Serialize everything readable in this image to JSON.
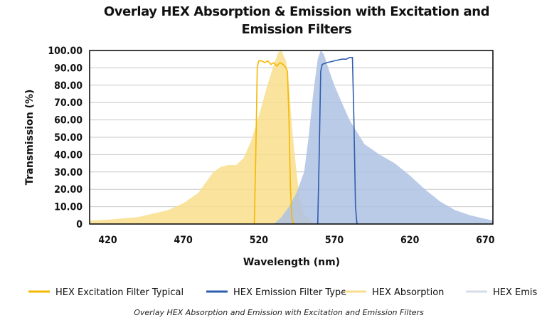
{
  "chart_data": {
    "type": "area",
    "title_lines": [
      "Overlay HEX Absorption & Emission with Excitation and",
      "Emission Filters"
    ],
    "xlabel": "Wavelength (nm)",
    "ylabel": "Transmission (%)",
    "xlim": [
      408,
      675
    ],
    "ylim": [
      0,
      100
    ],
    "xticks": [
      420,
      470,
      520,
      570,
      620,
      670
    ],
    "yticks": [
      0,
      10,
      20,
      30,
      40,
      50,
      60,
      70,
      80,
      90,
      100
    ],
    "ytick_labels": [
      "0",
      "10.00",
      "20.00",
      "30.00",
      "40.00",
      "50.00",
      "60.00",
      "70.00",
      "80.00",
      "90.00",
      "100.00"
    ],
    "grid": "horizontal",
    "legend_position": "bottom",
    "series": [
      {
        "name": "HEX Absorption",
        "kind": "area",
        "color": "#F8DE8C",
        "x": [
          408,
          420,
          440,
          460,
          470,
          480,
          485,
          490,
          495,
          500,
          505,
          510,
          515,
          520,
          525,
          530,
          533,
          535,
          538,
          540,
          542,
          545,
          547,
          550,
          555,
          560
        ],
        "y": [
          2,
          2.5,
          4,
          8,
          12,
          18,
          24,
          30,
          33,
          34,
          34,
          38,
          48,
          62,
          78,
          92,
          99,
          100,
          94,
          80,
          55,
          30,
          15,
          6,
          1,
          0
        ]
      },
      {
        "name": "HEX Emission",
        "kind": "area",
        "color": "#AEC2E4",
        "x": [
          530,
          535,
          540,
          545,
          550,
          553,
          556,
          559,
          561,
          563,
          566,
          570,
          575,
          580,
          590,
          600,
          610,
          620,
          630,
          640,
          650,
          660,
          670,
          675
        ],
        "y": [
          0,
          4,
          10,
          18,
          30,
          50,
          75,
          95,
          100,
          98,
          90,
          80,
          70,
          60,
          46,
          40,
          35,
          28,
          20,
          13,
          8,
          5,
          3,
          2
        ]
      },
      {
        "name": "HEX Excitation Filter Typical",
        "kind": "line",
        "color": "#F5B800",
        "x": [
          517,
          518,
          519,
          520,
          522,
          524,
          526,
          528,
          530,
          532,
          534,
          536,
          538,
          539,
          540,
          541,
          542,
          543
        ],
        "y": [
          0,
          40,
          90,
          94,
          94,
          93,
          94,
          92,
          93,
          91,
          93,
          92,
          90,
          88,
          60,
          20,
          3,
          0
        ]
      },
      {
        "name": "HEX Emission Filter Type",
        "kind": "line",
        "color": "#2F5DAD",
        "x": [
          559,
          560,
          561,
          562,
          565,
          570,
          575,
          578,
          580,
          582,
          583,
          584,
          585
        ],
        "y": [
          0,
          40,
          88,
          92,
          93,
          94,
          95,
          95,
          96,
          96,
          60,
          10,
          0
        ]
      }
    ]
  },
  "legend": [
    {
      "label": "HEX Excitation Filter Typical",
      "color": "#F5B800"
    },
    {
      "label": "HEX Emission Filter Type",
      "color": "#2F5DAD"
    },
    {
      "label": "HEX Absorption",
      "color": "#F8DE8C"
    },
    {
      "label": "HEX Emission",
      "color": "#D5DCEA"
    }
  ],
  "caption": "Overlay HEX Absorption and Emission with Excitation and Emission Filters"
}
